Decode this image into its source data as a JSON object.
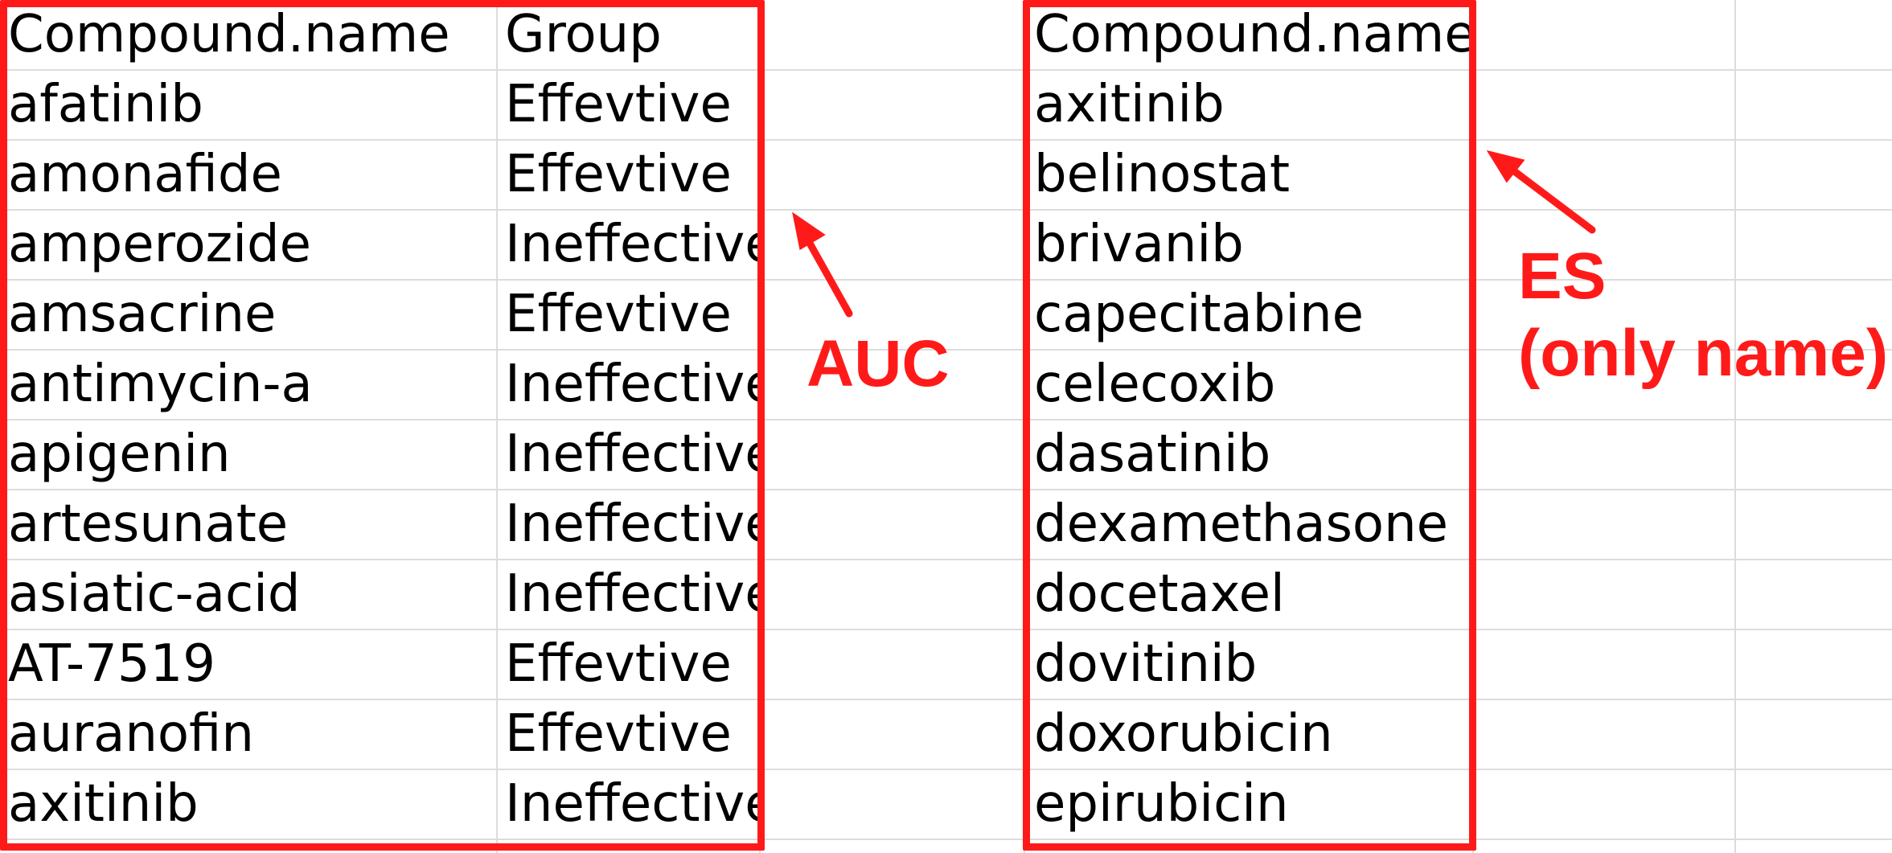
{
  "table_left": {
    "headers": [
      "Compound.name",
      "Group"
    ],
    "rows": [
      [
        "afatinib",
        "Effevtive"
      ],
      [
        "amonafide",
        "Effevtive"
      ],
      [
        "amperozide",
        "Ineffective"
      ],
      [
        "amsacrine",
        "Effevtive"
      ],
      [
        "antimycin-a",
        "Ineffective"
      ],
      [
        "apigenin",
        "Ineffective"
      ],
      [
        "artesunate",
        "Ineffective"
      ],
      [
        "asiatic-acid",
        "Ineffective"
      ],
      [
        "AT-7519",
        "Effevtive"
      ],
      [
        "auranofin",
        "Effevtive"
      ],
      [
        "axitinib",
        "Ineffective"
      ]
    ]
  },
  "table_right": {
    "header": "Compound.name",
    "rows": [
      "axitinib",
      "belinostat",
      "brivanib",
      "capecitabine",
      "celecoxib",
      "dasatinib",
      "dexamethasone",
      "docetaxel",
      "dovitinib",
      "doxorubicin",
      "epirubicin"
    ]
  },
  "annotations": {
    "auc_label": "AUC",
    "es_label_line1": "ES",
    "es_label_line2": "(only name)",
    "color": "#ff1a1a"
  }
}
